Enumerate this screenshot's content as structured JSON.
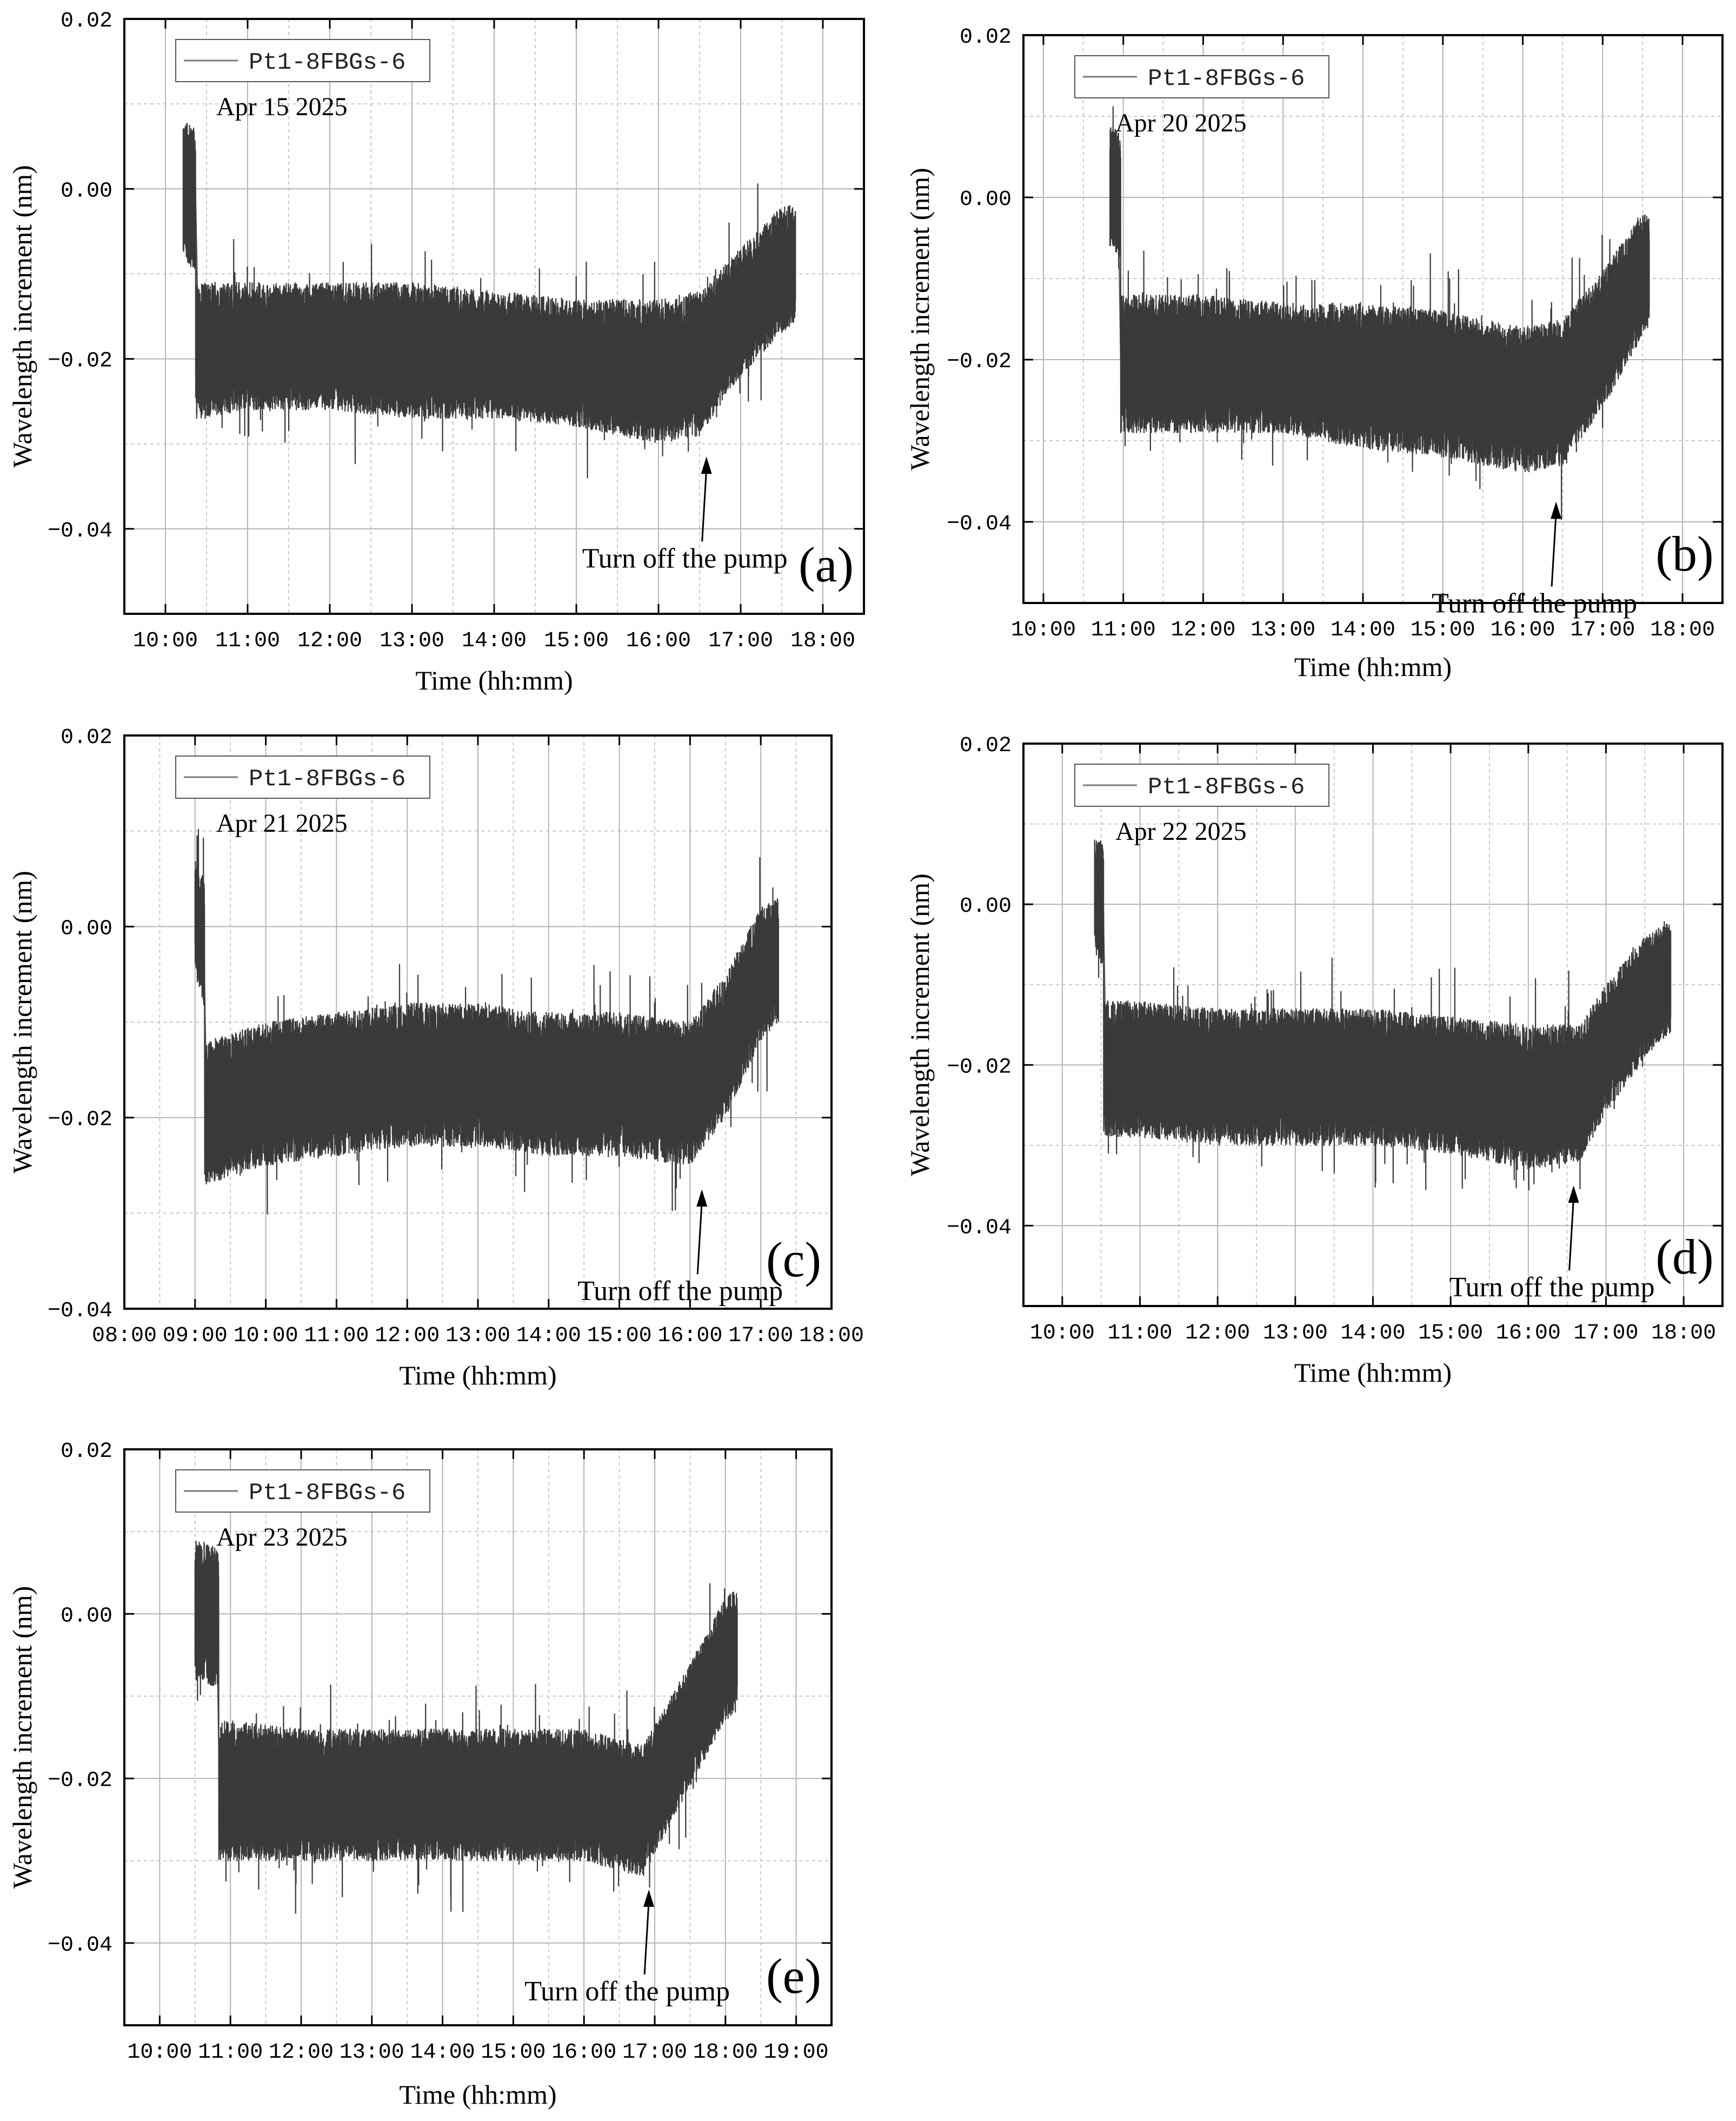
{
  "figure": {
    "colors": {
      "trace": "#3a3a3a",
      "trace_edge": "#7a7a7a",
      "grid_major": "#b4b4b4",
      "grid_minor": "#c8c8c8",
      "axis": "#000000"
    }
  },
  "chart_data": [
    {
      "panel_label": "(a)",
      "type": "line",
      "date_label": "Apr 15 2025",
      "legend": "Pt1-8FBGs-6",
      "xlabel": "Time (hh:mm)",
      "ylabel": "Wavelength  increment (nm)",
      "annotation": "Turn off the pump",
      "annotation_time": "16:35",
      "annotation_value": -0.0315,
      "grid": true,
      "legend_position": "top-left",
      "x_ticks": [
        "10:00",
        "11:00",
        "12:00",
        "13:00",
        "14:00",
        "15:00",
        "16:00",
        "17:00",
        "18:00"
      ],
      "y_ticks": [
        "0.02",
        "0.00",
        "−0.02",
        "−0.04"
      ],
      "xlim": [
        "09:30",
        "18:30"
      ],
      "ylim": [
        -0.05,
        0.02
      ],
      "series": [
        {
          "name": "Pt1-8FBGs-6",
          "x": [
            "10:13",
            "10:22",
            "10:22",
            "10:25",
            "11:00",
            "12:00",
            "13:00",
            "14:00",
            "15:00",
            "16:00",
            "16:30",
            "17:00",
            "17:30",
            "17:40"
          ],
          "center": [
            0.0,
            -0.001,
            -0.0195,
            -0.0195,
            -0.019,
            -0.019,
            -0.019,
            -0.0195,
            -0.02,
            -0.021,
            -0.021,
            -0.015,
            -0.011,
            -0.01
          ],
          "low": [
            -0.008,
            -0.01,
            -0.027,
            -0.027,
            -0.026,
            -0.026,
            -0.027,
            -0.027,
            -0.028,
            -0.03,
            -0.029,
            -0.022,
            -0.017,
            -0.016
          ],
          "high": [
            0.008,
            0.007,
            -0.011,
            -0.011,
            -0.011,
            -0.011,
            -0.011,
            -0.012,
            -0.013,
            -0.013,
            -0.012,
            -0.007,
            -0.002,
            -0.002
          ]
        }
      ]
    },
    {
      "panel_label": "(b)",
      "type": "line",
      "date_label": "Apr 20 2025",
      "legend": "Pt1-8FBGs-6",
      "xlabel": "Time (hh:mm)",
      "ylabel": "Wavelength  increment (nm)",
      "annotation": "Turn off the pump",
      "annotation_time": "16:25",
      "annotation_value": -0.0375,
      "grid": true,
      "legend_position": "top-left",
      "x_ticks": [
        "10:00",
        "11:00",
        "12:00",
        "13:00",
        "14:00",
        "15:00",
        "16:00",
        "17:00",
        "18:00"
      ],
      "y_ticks": [
        "0.02",
        "0.00",
        "−0.02",
        "−0.04"
      ],
      "xlim": [
        "09:45",
        "18:30"
      ],
      "ylim": [
        -0.05,
        0.02
      ],
      "series": [
        {
          "name": "Pt1-8FBGs-6",
          "x": [
            "10:50",
            "10:58",
            "10:58",
            "11:00",
            "12:00",
            "13:00",
            "14:00",
            "15:00",
            "16:00",
            "16:30",
            "17:00",
            "17:30",
            "17:35"
          ],
          "center": [
            0.002,
            0.0,
            -0.021,
            -0.021,
            -0.021,
            -0.021,
            -0.022,
            -0.023,
            -0.026,
            -0.026,
            -0.019,
            -0.011,
            -0.01
          ],
          "low": [
            -0.006,
            -0.008,
            -0.029,
            -0.029,
            -0.029,
            -0.029,
            -0.031,
            -0.032,
            -0.034,
            -0.033,
            -0.026,
            -0.017,
            -0.016
          ],
          "high": [
            0.009,
            0.008,
            -0.012,
            -0.012,
            -0.012,
            -0.013,
            -0.013,
            -0.014,
            -0.016,
            -0.015,
            -0.009,
            -0.002,
            -0.002
          ]
        }
      ]
    },
    {
      "panel_label": "(c)",
      "type": "line",
      "date_label": "Apr 21 2025",
      "legend": "Pt1-8FBGs-6",
      "xlabel": "Time (hh:mm)",
      "ylabel": "Wavelength  increment (nm)",
      "annotation": "Turn off the pump",
      "annotation_time": "16:10",
      "annotation_value": -0.0275,
      "grid": true,
      "legend_position": "top-left",
      "x_ticks": [
        "08:00",
        "09:00",
        "10:00",
        "11:00",
        "12:00",
        "13:00",
        "14:00",
        "15:00",
        "16:00",
        "17:00",
        "18:00"
      ],
      "y_ticks": [
        "0.02",
        "0.00",
        "−0.02",
        "−0.04"
      ],
      "xlim": [
        "08:00",
        "18:00"
      ],
      "ylim": [
        -0.04,
        0.02
      ],
      "series": [
        {
          "name": "Pt1-8FBGs-6",
          "x": [
            "09:00",
            "09:08",
            "09:08",
            "09:10",
            "10:00",
            "11:00",
            "12:00",
            "13:00",
            "14:00",
            "15:00",
            "16:00",
            "16:30",
            "17:00",
            "17:15"
          ],
          "center": [
            0.002,
            -0.002,
            -0.02,
            -0.02,
            -0.018,
            -0.017,
            -0.016,
            -0.016,
            -0.017,
            -0.017,
            -0.018,
            -0.013,
            -0.006,
            -0.004
          ],
          "low": [
            -0.004,
            -0.009,
            -0.027,
            -0.027,
            -0.025,
            -0.024,
            -0.023,
            -0.023,
            -0.024,
            -0.024,
            -0.025,
            -0.02,
            -0.012,
            -0.01
          ],
          "high": [
            0.007,
            0.005,
            -0.012,
            -0.012,
            -0.01,
            -0.009,
            -0.008,
            -0.008,
            -0.009,
            -0.009,
            -0.01,
            -0.005,
            0.002,
            0.003
          ]
        }
      ]
    },
    {
      "panel_label": "(d)",
      "type": "line",
      "date_label": "Apr 22 2025",
      "legend": "Pt1-8FBGs-6",
      "xlabel": "Time (hh:mm)",
      "ylabel": "Wavelength  increment (nm)",
      "annotation": "Turn off the pump",
      "annotation_time": "16:35",
      "annotation_value": -0.035,
      "grid": true,
      "legend_position": "top-left",
      "x_ticks": [
        "10:00",
        "11:00",
        "12:00",
        "13:00",
        "14:00",
        "15:00",
        "16:00",
        "17:00",
        "18:00"
      ],
      "y_ticks": [
        "0.02",
        "0.00",
        "−0.02",
        "−0.04"
      ],
      "xlim": [
        "09:30",
        "18:30"
      ],
      "ylim": [
        -0.05,
        0.02
      ],
      "series": [
        {
          "name": "Pt1-8FBGs-6",
          "x": [
            "10:25",
            "10:32",
            "10:32",
            "10:35",
            "11:00",
            "12:00",
            "13:00",
            "14:00",
            "15:00",
            "16:00",
            "16:40",
            "17:00",
            "17:30",
            "17:50"
          ],
          "center": [
            0.001,
            0.0,
            -0.021,
            -0.021,
            -0.021,
            -0.022,
            -0.022,
            -0.022,
            -0.023,
            -0.024,
            -0.024,
            -0.019,
            -0.013,
            -0.01
          ],
          "low": [
            -0.006,
            -0.008,
            -0.029,
            -0.029,
            -0.029,
            -0.03,
            -0.03,
            -0.03,
            -0.031,
            -0.033,
            -0.032,
            -0.026,
            -0.019,
            -0.016
          ],
          "high": [
            0.008,
            0.008,
            -0.012,
            -0.012,
            -0.012,
            -0.013,
            -0.013,
            -0.013,
            -0.014,
            -0.015,
            -0.015,
            -0.01,
            -0.004,
            -0.002
          ]
        }
      ]
    },
    {
      "panel_label": "(e)",
      "type": "line",
      "date_label": "Apr 23 2025",
      "legend": "Pt1-8FBGs-6",
      "xlabel": "Time (hh:mm)",
      "ylabel": "Wavelength  increment (nm)",
      "annotation": "Turn off the pump",
      "annotation_time": "16:55",
      "annotation_value": -0.0335,
      "grid": true,
      "legend_position": "top-left",
      "x_ticks": [
        "10:00",
        "11:00",
        "12:00",
        "13:00",
        "14:00",
        "15:00",
        "16:00",
        "17:00",
        "18:00",
        "19:00"
      ],
      "y_ticks": [
        "0.02",
        "0.00",
        "−0.02",
        "−0.04"
      ],
      "xlim": [
        "09:30",
        "19:30"
      ],
      "ylim": [
        -0.05,
        0.02
      ],
      "series": [
        {
          "name": "Pt1-8FBGs-6",
          "x": [
            "10:30",
            "10:50",
            "10:50",
            "10:55",
            "11:00",
            "12:00",
            "13:00",
            "14:00",
            "15:00",
            "16:00",
            "16:50",
            "17:30",
            "18:00",
            "18:10"
          ],
          "center": [
            0.0,
            -0.001,
            -0.022,
            -0.022,
            -0.022,
            -0.022,
            -0.022,
            -0.022,
            -0.022,
            -0.022,
            -0.024,
            -0.014,
            -0.007,
            -0.006
          ],
          "low": [
            -0.008,
            -0.009,
            -0.03,
            -0.03,
            -0.03,
            -0.03,
            -0.03,
            -0.03,
            -0.03,
            -0.03,
            -0.032,
            -0.021,
            -0.013,
            -0.012
          ],
          "high": [
            0.009,
            0.008,
            -0.013,
            -0.013,
            -0.013,
            -0.014,
            -0.014,
            -0.014,
            -0.014,
            -0.014,
            -0.016,
            -0.006,
            0.002,
            0.003
          ]
        }
      ]
    }
  ]
}
